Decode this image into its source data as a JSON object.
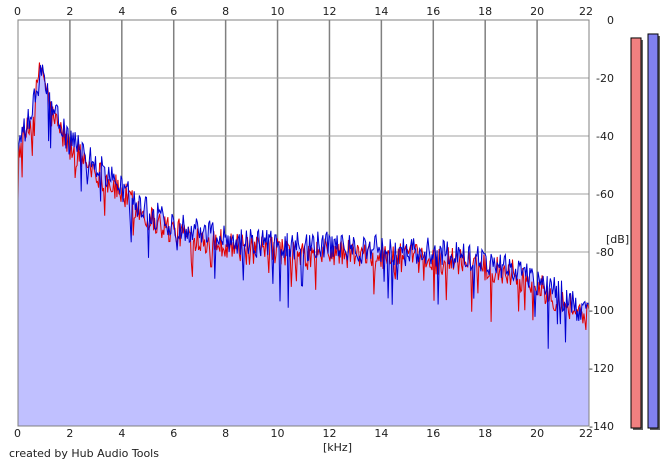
{
  "chart_data": {
    "type": "area",
    "xlabel": "[kHz]",
    "ylabel": "[dB]",
    "xlim": [
      0,
      22
    ],
    "ylim": [
      -140,
      0
    ],
    "x_ticks": [
      "0",
      "2",
      "4",
      "6",
      "8",
      "10",
      "12",
      "14",
      "16",
      "18",
      "20",
      "22"
    ],
    "y_ticks": [
      "0",
      "-20",
      "-40",
      "-60",
      "-80",
      "-100",
      "-120",
      "-140"
    ],
    "grid": true,
    "fill_color": "#c0c0ff",
    "series": [
      {
        "color": "#e00000",
        "x": [
          0,
          0.5,
          0.9,
          1.3,
          2,
          3,
          4,
          5,
          6,
          7,
          8,
          9,
          10,
          11,
          12,
          13,
          14,
          15,
          16,
          17,
          18,
          19,
          20,
          21,
          22
        ],
        "values": [
          -45,
          -36,
          -15,
          -33,
          -44,
          -52,
          -60,
          -68,
          -73,
          -75,
          -77,
          -80,
          -79,
          -82,
          -80,
          -81,
          -82,
          -82,
          -83,
          -83,
          -85,
          -87,
          -92,
          -97,
          -103
        ]
      },
      {
        "color": "#0000d0",
        "x": [
          0,
          0.5,
          0.9,
          1.3,
          2,
          3,
          4,
          5,
          6,
          7,
          8,
          9,
          10,
          11,
          12,
          13,
          14,
          15,
          16,
          17,
          18,
          19,
          20,
          21,
          22
        ],
        "values": [
          -44,
          -33,
          -18,
          -31,
          -42,
          -50,
          -58,
          -66,
          -71,
          -72,
          -75,
          -77,
          -77,
          -78,
          -78,
          -79,
          -79,
          -80,
          -80,
          -81,
          -83,
          -85,
          -90,
          -95,
          -102
        ]
      }
    ],
    "level_meters": [
      {
        "color": "#f08080",
        "level": 0.98
      },
      {
        "color": "#8080f0",
        "level": 0.99
      }
    ]
  },
  "footer": {
    "credit": "created by Hub Audio Tools"
  }
}
